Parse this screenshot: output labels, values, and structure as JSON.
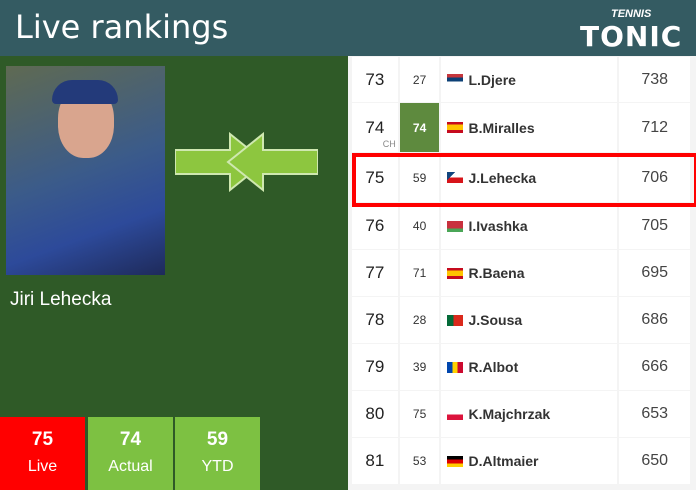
{
  "header": {
    "title": "Live rankings",
    "logo_small": "TENNIS",
    "logo_big": "TONIC"
  },
  "player": {
    "name": "Jiri Lehecka"
  },
  "stats": [
    {
      "value": "75",
      "label": "Live",
      "color": "#ff0000"
    },
    {
      "value": "74",
      "label": "Actual",
      "color": "#7dc142"
    },
    {
      "value": "59",
      "label": "YTD",
      "color": "#7dc142"
    }
  ],
  "rows": [
    {
      "rank": "73",
      "prev": "27",
      "name": "L.Djere",
      "points": "738",
      "flag": "serbia"
    },
    {
      "rank": "74",
      "prev": "74",
      "name": "B.Miralles",
      "points": "712",
      "flag": "spain",
      "note": "CH"
    },
    {
      "rank": "75",
      "prev": "59",
      "name": "J.Lehecka",
      "points": "706",
      "flag": "czechia"
    },
    {
      "rank": "76",
      "prev": "40",
      "name": "I.Ivashka",
      "points": "705",
      "flag": "belarus"
    },
    {
      "rank": "77",
      "prev": "71",
      "name": "R.Baena",
      "points": "695",
      "flag": "spain"
    },
    {
      "rank": "78",
      "prev": "28",
      "name": "J.Sousa",
      "points": "686",
      "flag": "portugal"
    },
    {
      "rank": "79",
      "prev": "39",
      "name": "R.Albot",
      "points": "666",
      "flag": "moldova"
    },
    {
      "rank": "80",
      "prev": "75",
      "name": "K.Majchrzak",
      "points": "653",
      "flag": "poland"
    },
    {
      "rank": "81",
      "prev": "53",
      "name": "D.Altmaier",
      "points": "650",
      "flag": "germany"
    }
  ]
}
